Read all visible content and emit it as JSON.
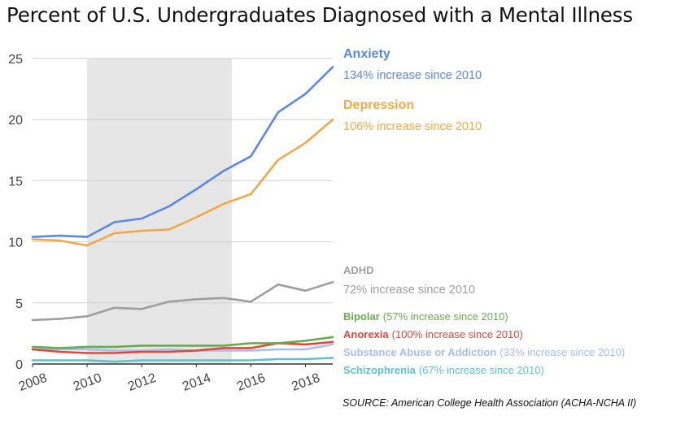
{
  "chart_data": {
    "type": "line",
    "title": "Percent of U.S. Undergraduates Diagnosed with a Mental Illness",
    "xlabel": "",
    "ylabel": "",
    "x": [
      2008,
      2009,
      2010,
      2011,
      2012,
      2013,
      2014,
      2015,
      2016,
      2017,
      2018,
      2019
    ],
    "xlim": [
      2008,
      2019
    ],
    "ylim": [
      0,
      25
    ],
    "x_ticks": [
      "2008",
      "2010",
      "2012",
      "2014",
      "2016",
      "2018"
    ],
    "y_ticks": [
      "0",
      "5",
      "10",
      "15",
      "20",
      "25"
    ],
    "grid": "horizontal",
    "shaded_period": [
      2010,
      2015.3
    ],
    "series": [
      {
        "name": "Anxiety",
        "note": "134% increase since 2010",
        "color": "#5b87e6",
        "values": [
          10.4,
          10.5,
          10.4,
          11.6,
          11.9,
          12.9,
          14.3,
          15.8,
          17.0,
          20.6,
          22.1,
          24.3
        ]
      },
      {
        "name": "Depression",
        "note": "106% increase since 2010",
        "color": "#f0a948",
        "values": [
          10.2,
          10.1,
          9.7,
          10.7,
          10.9,
          11.0,
          12.0,
          13.1,
          13.9,
          16.7,
          18.1,
          20.0
        ]
      },
      {
        "name": "ADHD",
        "note": "72% increase since 2010",
        "color": "#9e9e9e",
        "values": [
          3.6,
          3.7,
          3.9,
          4.6,
          4.5,
          5.1,
          5.3,
          5.4,
          5.1,
          6.5,
          6.0,
          6.7
        ]
      },
      {
        "name": "Bipolar",
        "note": "(57% increase since 2010)",
        "color": "#6aaa4f",
        "values": [
          1.4,
          1.3,
          1.4,
          1.4,
          1.5,
          1.5,
          1.5,
          1.5,
          1.7,
          1.7,
          1.9,
          2.2
        ]
      },
      {
        "name": "Anorexia",
        "note": "(100% increase since 2010)",
        "color": "#e0463a",
        "values": [
          1.2,
          1.0,
          0.9,
          0.9,
          1.0,
          1.0,
          1.1,
          1.3,
          1.3,
          1.7,
          1.6,
          1.8
        ]
      },
      {
        "name": "Substance Abuse or Addiction",
        "note": "(33% increase since 2010)",
        "color": "#a6bef0",
        "values": [
          1.2,
          1.2,
          1.2,
          1.1,
          1.1,
          1.2,
          1.1,
          1.1,
          1.1,
          1.2,
          1.2,
          1.6
        ]
      },
      {
        "name": "Schizophrenia",
        "note": "(67% increase since 2010)",
        "color": "#5fc1c9",
        "values": [
          0.3,
          0.3,
          0.3,
          0.2,
          0.3,
          0.3,
          0.3,
          0.3,
          0.3,
          0.4,
          0.4,
          0.5
        ]
      }
    ],
    "source": "SOURCE: American College Health Association (ACHA-NCHA II)"
  }
}
